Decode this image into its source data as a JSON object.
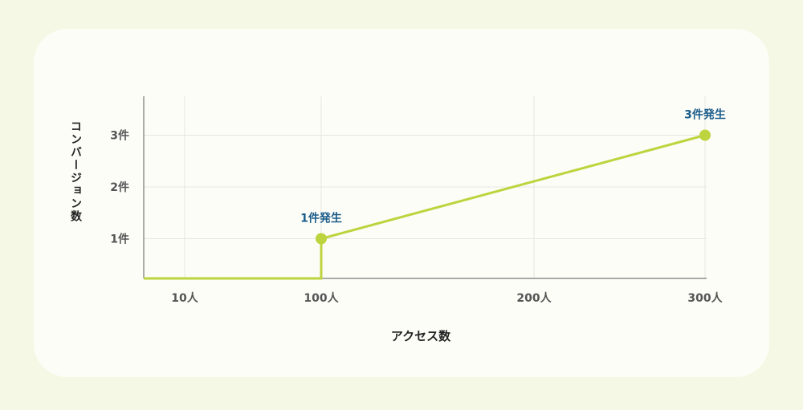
{
  "chart_data": {
    "type": "line",
    "xlabel": "アクセス数",
    "ylabel": "コンバージョン数",
    "x_ticks": [
      "10人",
      "100人",
      "200人",
      "300人"
    ],
    "y_ticks": [
      "1件",
      "2件",
      "3件"
    ],
    "x_axis_range": [
      0,
      300
    ],
    "y_axis_range": [
      0,
      3
    ],
    "grid": true,
    "series": [
      {
        "color": "#bdd43e",
        "points": [
          {
            "x": 0,
            "y": 0
          },
          {
            "x": 100,
            "y": 0
          },
          {
            "x": 100,
            "y": 1
          },
          {
            "x": 300,
            "y": 3
          }
        ]
      }
    ],
    "annotations": [
      {
        "x": 100,
        "y": 1,
        "text": "1件発生"
      },
      {
        "x": 300,
        "y": 3,
        "text": "3件発生"
      }
    ],
    "colors": {
      "line": "#bdd43e",
      "annotation": "#1a5c8a"
    }
  }
}
